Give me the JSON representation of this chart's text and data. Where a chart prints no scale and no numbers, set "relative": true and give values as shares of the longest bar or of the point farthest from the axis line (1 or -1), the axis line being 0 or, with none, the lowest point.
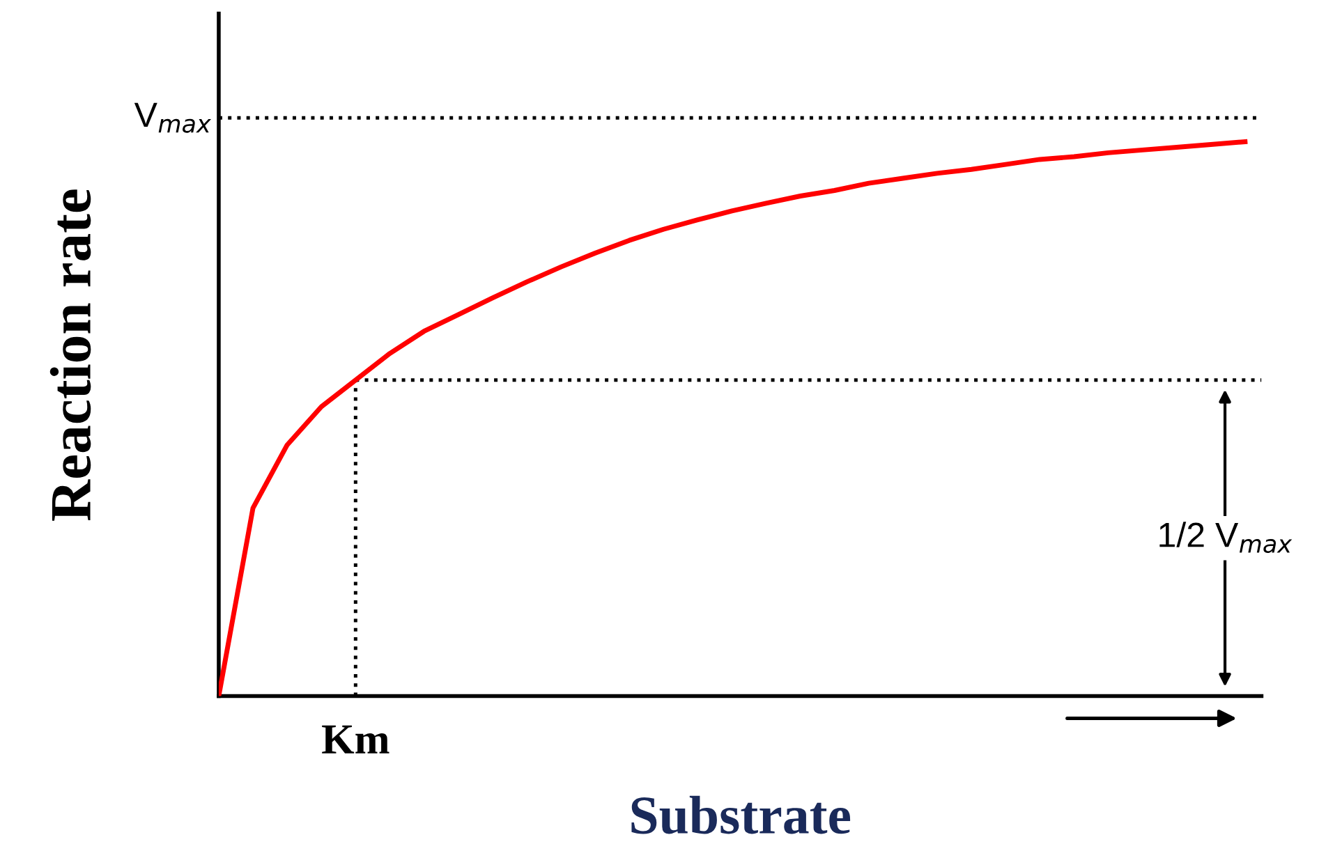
{
  "chart_data": {
    "type": "line",
    "relative": true,
    "xlabel": "Substrate",
    "ylabel": "Reaction rate",
    "categories": [
      null,
      null,
      null,
      null,
      null,
      null,
      null,
      null,
      null,
      null,
      null,
      null,
      null,
      null,
      null,
      null,
      null,
      null,
      null,
      null,
      null,
      null,
      null,
      null,
      null,
      null,
      null,
      null,
      null,
      null,
      null
    ],
    "series": [
      {
        "color": "#ff0000",
        "values": [
          0,
          0.339,
          0.453,
          0.522,
          0.57,
          0.618,
          0.658,
          0.688,
          0.718,
          0.747,
          0.774,
          0.799,
          0.822,
          0.842,
          0.859,
          0.875,
          0.889,
          0.902,
          0.912,
          0.925,
          0.934,
          0.943,
          0.95,
          0.959,
          0.968,
          0.973,
          0.98,
          0.985,
          0.99,
          0.995,
          1
        ]
      }
    ],
    "ref_lines": [
      {
        "axis": "y",
        "value": 1.043,
        "label": "V$_{max}$",
        "line_style": "dotted",
        "color": "#000000"
      },
      {
        "axis": "y",
        "value": 0.57,
        "line_style": "dotted",
        "color": "#000000"
      }
    ],
    "annotations": [
      "Km",
      "1/2 V$_{max}$"
    ],
    "marker": "none",
    "line_style": "solid"
  }
}
